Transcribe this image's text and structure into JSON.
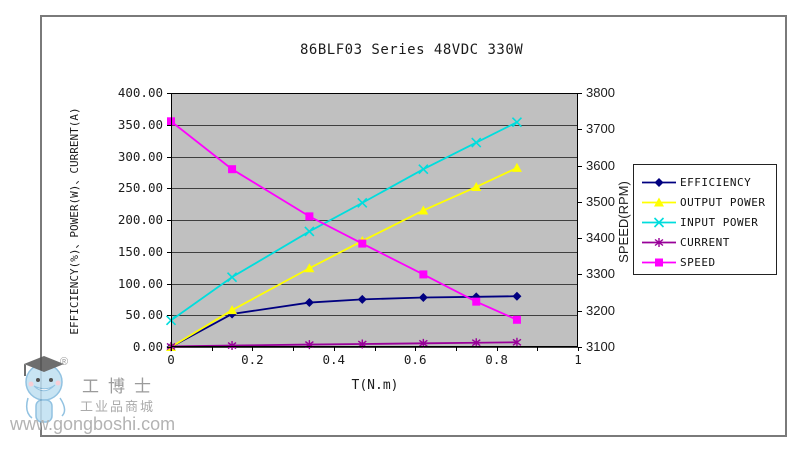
{
  "chart_data": {
    "type": "line",
    "title": "86BLF03 Series 48VDC 330W",
    "xlabel": "T(N.m)",
    "ylabel_left": "EFFICIENCY(%)、POWER(W)、CURRENT(A)",
    "ylabel_right": "SPEED(RPM)",
    "xlim": [
      0,
      1
    ],
    "x_tick_labels": [
      "0",
      "0.2",
      "0.4",
      "0.6",
      "0.8",
      "1"
    ],
    "x_minor_tick_step": 0.1,
    "ylim_left": [
      0,
      400
    ],
    "y_tick_labels_left": [
      "400.00",
      "350.00",
      "300.00",
      "250.00",
      "200.00",
      "150.00",
      "100.00",
      "50.00",
      "0.00"
    ],
    "ylim_right": [
      3100,
      3800
    ],
    "y_tick_labels_right": [
      "3800",
      "3700",
      "3600",
      "3500",
      "3400",
      "3300",
      "3200",
      "3100"
    ],
    "plot_bg": "#c0c0c0",
    "gridline_color": "#3f3f3f",
    "grid": true,
    "legend_position": "right",
    "x": [
      0,
      0.15,
      0.34,
      0.47,
      0.62,
      0.75,
      0.85
    ],
    "series": [
      {
        "name": "EFFICIENCY",
        "axis": "left",
        "color": "#000080",
        "marker": "diamond",
        "values": [
          0,
          52,
          70,
          75,
          78,
          79,
          80
        ]
      },
      {
        "name": "OUTPUT POWER",
        "axis": "left",
        "color": "#ffff00",
        "marker": "triangle",
        "values": [
          0,
          58,
          124,
          167,
          215,
          252,
          282
        ]
      },
      {
        "name": "INPUT POWER",
        "axis": "left",
        "color": "#00dddd",
        "marker": "x",
        "values": [
          42,
          110,
          182,
          227,
          280,
          322,
          354
        ]
      },
      {
        "name": "CURRENT",
        "axis": "left",
        "color": "#990099",
        "marker": "asterisk",
        "values": [
          0.9,
          2.3,
          3.8,
          4.7,
          5.8,
          6.7,
          7.4
        ]
      },
      {
        "name": "SPEED",
        "axis": "right",
        "color": "#ff00ff",
        "marker": "square",
        "values": [
          3722,
          3590,
          3460,
          3385,
          3300,
          3225,
          3175
        ]
      }
    ]
  },
  "watermark": {
    "registered": "®",
    "brand_cn": "工博士",
    "brand_sub": "工业品商城",
    "url": "www.gongboshi.com"
  }
}
